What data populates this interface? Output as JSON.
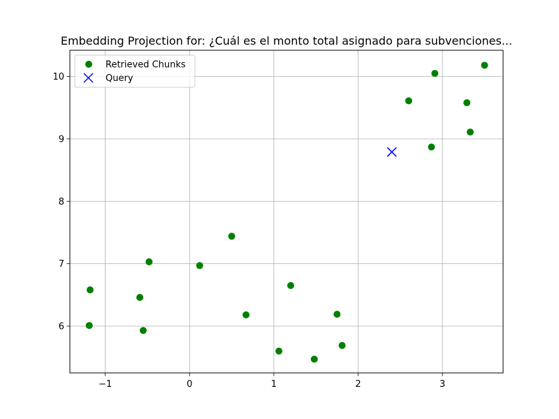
{
  "chart_data": {
    "type": "scatter",
    "title": "Embedding Projection for: ¿Cuál es el monto total asignado para subvenciones...",
    "xlabel": "",
    "ylabel": "",
    "xlim": [
      -1.42,
      3.72
    ],
    "ylim": [
      5.25,
      10.42
    ],
    "xticks": [
      -1,
      0,
      1,
      2,
      3
    ],
    "yticks": [
      6,
      7,
      8,
      9,
      10
    ],
    "xtick_labels": [
      "−1",
      "0",
      "1",
      "2",
      "3"
    ],
    "ytick_labels": [
      "6",
      "7",
      "8",
      "9",
      "10"
    ],
    "grid": true,
    "legend_position": "top-left",
    "series": [
      {
        "name": "Retrieved Chunks",
        "marker": "circle",
        "color": "#008000",
        "points": [
          {
            "x": 2.91,
            "y": 10.05
          },
          {
            "x": 3.5,
            "y": 10.18
          },
          {
            "x": 2.6,
            "y": 9.61
          },
          {
            "x": 3.29,
            "y": 9.58
          },
          {
            "x": 3.33,
            "y": 9.11
          },
          {
            "x": 2.87,
            "y": 8.87
          },
          {
            "x": 0.5,
            "y": 7.44
          },
          {
            "x": -0.48,
            "y": 7.03
          },
          {
            "x": 0.12,
            "y": 6.97
          },
          {
            "x": -1.18,
            "y": 6.58
          },
          {
            "x": 1.2,
            "y": 6.65
          },
          {
            "x": -0.59,
            "y": 6.46
          },
          {
            "x": 0.67,
            "y": 6.18
          },
          {
            "x": 1.75,
            "y": 6.19
          },
          {
            "x": -1.19,
            "y": 6.01
          },
          {
            "x": -0.55,
            "y": 5.93
          },
          {
            "x": 1.81,
            "y": 5.69
          },
          {
            "x": 1.06,
            "y": 5.6
          },
          {
            "x": 1.48,
            "y": 5.47
          }
        ]
      },
      {
        "name": "Query",
        "marker": "x",
        "color": "#0000ff",
        "points": [
          {
            "x": 2.4,
            "y": 8.79
          }
        ]
      }
    ]
  }
}
